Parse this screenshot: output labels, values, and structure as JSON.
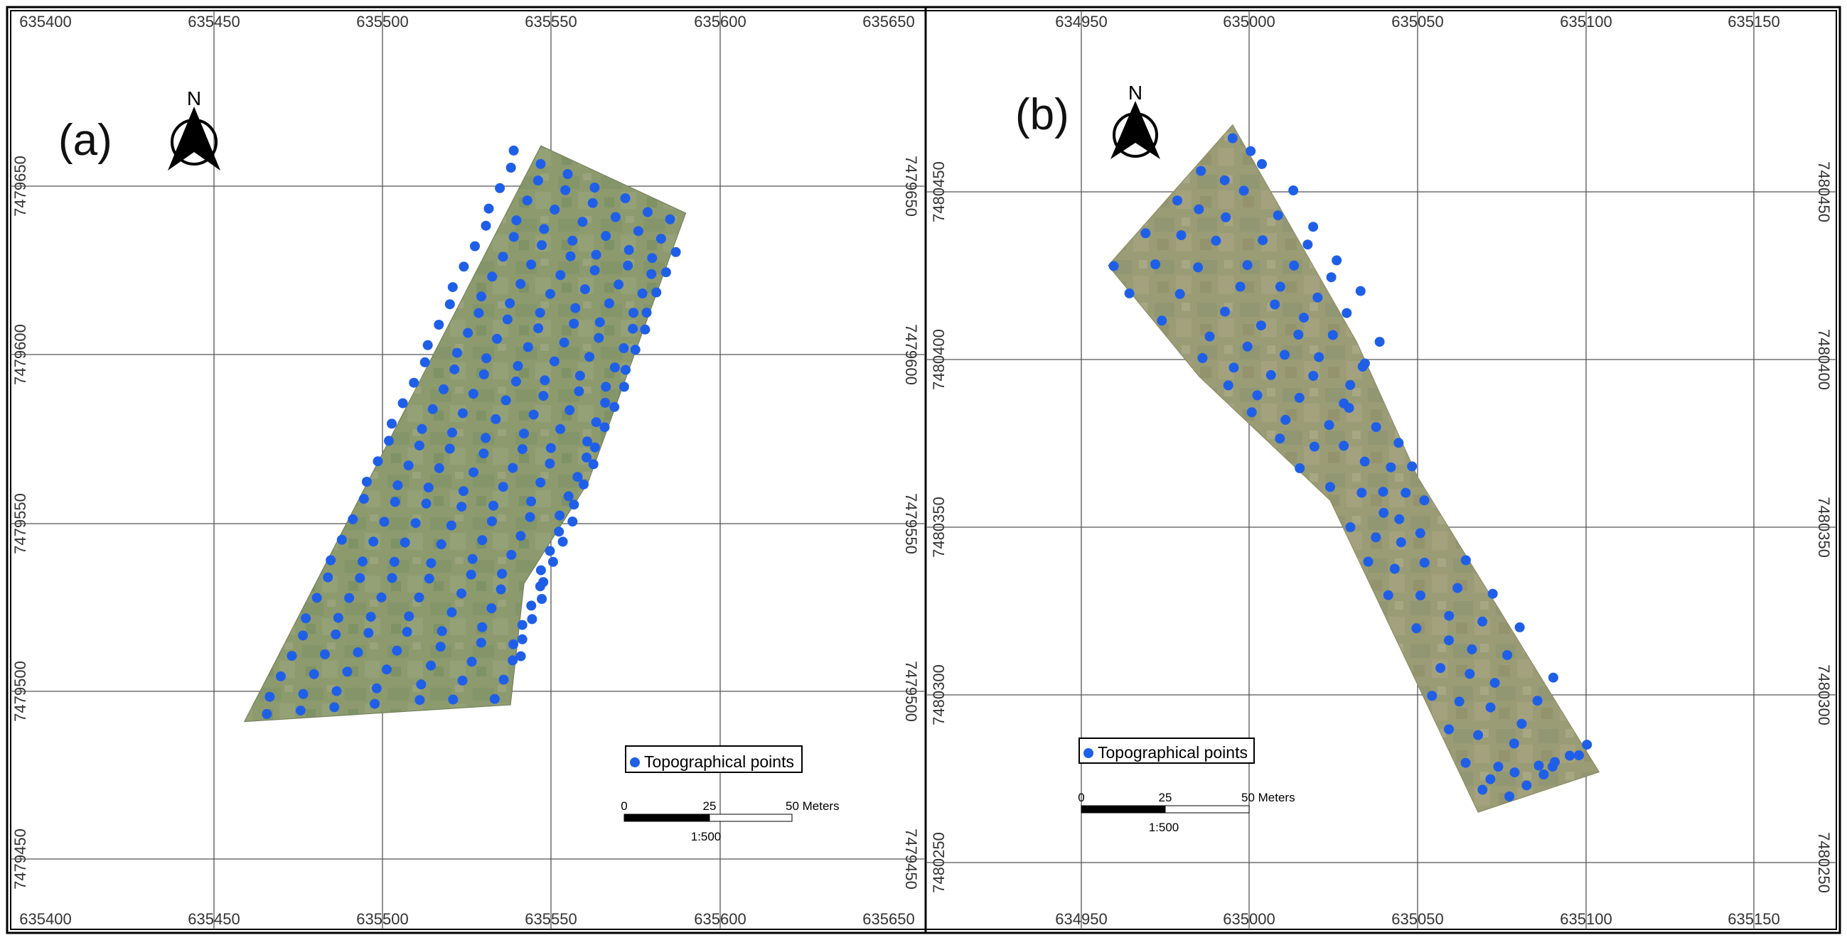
{
  "panels": [
    {
      "id": "a",
      "label": "(a)",
      "x_ticks": [
        "635400",
        "635450",
        "635500",
        "635550",
        "635600",
        "635650"
      ],
      "y_ticks": [
        "7479650",
        "7479600",
        "7479550",
        "7479500",
        "7479450"
      ],
      "north_label": "N",
      "legend_label": "Topographical points",
      "scale": {
        "zero": "0",
        "mid": "25",
        "end": "50 Meters",
        "ratio": "1:500"
      },
      "point_color": "#1f5fe8",
      "image_area": {
        "polygon_xy": [
          [
            635547,
            7479662
          ],
          [
            635590,
            7479642
          ],
          [
            635561,
            7479562
          ],
          [
            635542,
            7479532
          ],
          [
            635538,
            7479496
          ],
          [
            635459,
            7479491
          ]
        ],
        "rows": [
          {
            "start": [
              635465,
              7479493
            ],
            "end": [
              635540,
              7479661
            ],
            "n": 30
          },
          {
            "start": [
              635475,
              7479494
            ],
            "end": [
              635548,
              7479657
            ],
            "n": 30
          },
          {
            "start": [
              635485,
              7479495
            ],
            "end": [
              635556,
              7479654
            ],
            "n": 30
          },
          {
            "start": [
              635497,
              7479496
            ],
            "end": [
              635564,
              7479650
            ],
            "n": 30
          },
          {
            "start": [
              635510,
              7479497
            ],
            "end": [
              635571,
              7479646
            ],
            "n": 29
          },
          {
            "start": [
              635522,
              7479498
            ],
            "end": [
              635578,
              7479642
            ],
            "n": 28
          },
          {
            "start": [
              635534,
              7479498
            ],
            "end": [
              635585,
              7479640
            ],
            "n": 27
          },
          {
            "start": [
              635540,
              7479510
            ],
            "end": [
              635586,
              7479630
            ],
            "n": 22
          }
        ]
      }
    },
    {
      "id": "b",
      "label": "(b)",
      "x_ticks": [
        "634950",
        "635000",
        "635050",
        "635100",
        "635150"
      ],
      "y_ticks": [
        "7480450",
        "7480400",
        "7480350",
        "7480300",
        "7480250"
      ],
      "north_label": "N",
      "legend_label": "Topographical points",
      "scale": {
        "zero": "0",
        "mid": "25",
        "end": "50 Meters",
        "ratio": "1:500"
      },
      "point_color": "#1f5fe8",
      "image_area": {
        "polygon_xy": [
          [
            634995,
            7480470
          ],
          [
            635032,
            7480405
          ],
          [
            635050,
            7480365
          ],
          [
            635104,
            7480277
          ],
          [
            635068,
            7480265
          ],
          [
            635024,
            7480358
          ],
          [
            634985,
            7480395
          ],
          [
            634958,
            7480428
          ]
        ],
        "rows": [
          {
            "start": [
              634960,
              7480428
            ],
            "end": [
              634995,
              7480466
            ],
            "n": 5
          },
          {
            "start": [
              634965,
              7480420
            ],
            "end": [
              635000,
              7480462
            ],
            "n": 6
          },
          {
            "start": [
              634975,
              7480412
            ],
            "end": [
              635003,
              7480458
            ],
            "n": 7
          },
          {
            "start": [
              634985,
              7480400
            ],
            "end": [
              635012,
              7480450
            ],
            "n": 8
          },
          {
            "start": [
              634993,
              7480392
            ],
            "end": [
              635020,
              7480440
            ],
            "n": 9
          },
          {
            "start": [
              635000,
              7480384
            ],
            "end": [
              635027,
              7480430
            ],
            "n": 9
          },
          {
            "start": [
              635008,
              7480376
            ],
            "end": [
              635032,
              7480420
            ],
            "n": 8
          },
          {
            "start": [
              635016,
              7480368
            ],
            "end": [
              635038,
              7480405
            ],
            "n": 7
          },
          {
            "start": [
              635024,
              7480362
            ],
            "end": [
              635034,
              7480398
            ],
            "n": 4
          },
          {
            "start": [
              635030,
              7480350
            ],
            "end": [
              635038,
              7480380
            ],
            "n": 4
          },
          {
            "start": [
              635036,
              7480340
            ],
            "end": [
              635044,
              7480375
            ],
            "n": 6
          },
          {
            "start": [
              635042,
              7480330
            ],
            "end": [
              635048,
              7480368
            ],
            "n": 6
          },
          {
            "start": [
              635050,
              7480320
            ],
            "end": [
              635052,
              7480358
            ],
            "n": 5
          },
          {
            "start": [
              635055,
              7480300
            ],
            "end": [
              635064,
              7480340
            ],
            "n": 6
          },
          {
            "start": [
              635060,
              7480290
            ],
            "end": [
              635072,
              7480330
            ],
            "n": 6
          },
          {
            "start": [
              635065,
              7480280
            ],
            "end": [
              635080,
              7480320
            ],
            "n": 6
          },
          {
            "start": [
              635070,
              7480272
            ],
            "end": [
              635090,
              7480305
            ],
            "n": 6
          },
          {
            "start": [
              635078,
              7480270
            ],
            "end": [
              635100,
              7480285
            ],
            "n": 6
          },
          {
            "start": [
              635072,
              7480275
            ],
            "end": [
              635098,
              7480282
            ],
            "n": 5
          }
        ]
      }
    }
  ]
}
